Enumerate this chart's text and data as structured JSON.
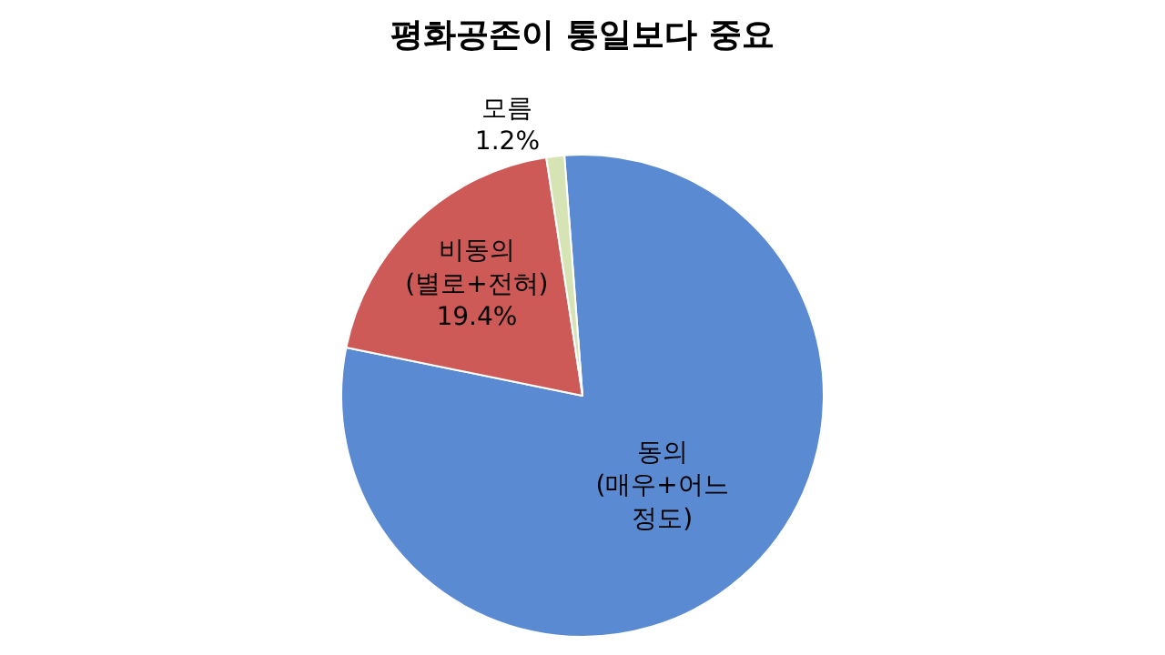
{
  "chart_data": {
    "type": "pie",
    "title": "평화공존이 통일보다 중요",
    "categories": [
      "동의\n(매우+어느\n정도)",
      "비동의\n(별로+전혀)",
      "모름"
    ],
    "values": [
      79.4,
      19.4,
      1.2
    ],
    "value_labels": [
      null,
      "19.4%",
      "1.2%"
    ],
    "colors": [
      "#5a8ad2",
      "#cd5a57",
      "#d6e3b5"
    ],
    "legend": false
  }
}
